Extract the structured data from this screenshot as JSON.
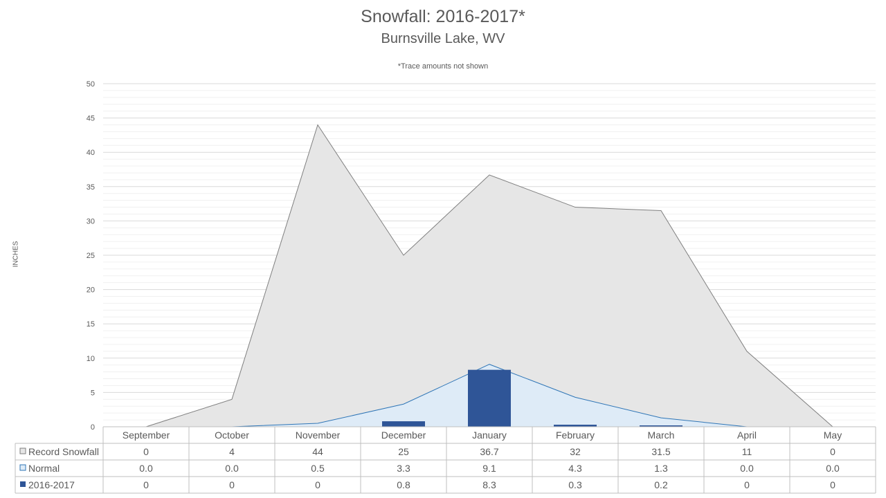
{
  "chart_data": {
    "type": "area",
    "title": "Snowfall: 2016-2017*",
    "subtitle": "Burnsville Lake, WV",
    "note": "*Trace amounts not shown",
    "ylabel": "INCHES",
    "ylim": [
      0,
      50
    ],
    "yticks": [
      0,
      5,
      10,
      15,
      20,
      25,
      30,
      35,
      40,
      45,
      50
    ],
    "categories": [
      "September",
      "October",
      "November",
      "December",
      "January",
      "February",
      "March",
      "April",
      "May"
    ],
    "series": [
      {
        "name": "Record Snowfall",
        "kind": "area",
        "values": [
          0,
          4,
          44,
          25,
          36.7,
          32,
          31.5,
          11,
          0
        ],
        "labels": [
          "0",
          "4",
          "44",
          "25",
          "36.7",
          "32",
          "31.5",
          "11",
          "0"
        ],
        "fill": "#e6e6e6",
        "stroke": "#7f7f7f"
      },
      {
        "name": "Normal",
        "kind": "area",
        "values": [
          0.0,
          0.0,
          0.5,
          3.3,
          9.1,
          4.3,
          1.3,
          0.0,
          0.0
        ],
        "labels": [
          "0.0",
          "0.0",
          "0.5",
          "3.3",
          "9.1",
          "4.3",
          "1.3",
          "0.0",
          "0.0"
        ],
        "fill": "#deebf7",
        "stroke": "#2e75b6"
      },
      {
        "name": "2016-2017",
        "kind": "bar",
        "values": [
          0,
          0,
          0,
          0.8,
          8.3,
          0.3,
          0.2,
          0,
          0
        ],
        "labels": [
          "0",
          "0",
          "0",
          "0.8",
          "8.3",
          "0.3",
          "0.2",
          "0",
          "0"
        ],
        "fill": "#2f5597"
      }
    ],
    "grid": true,
    "legend": "data-table"
  }
}
